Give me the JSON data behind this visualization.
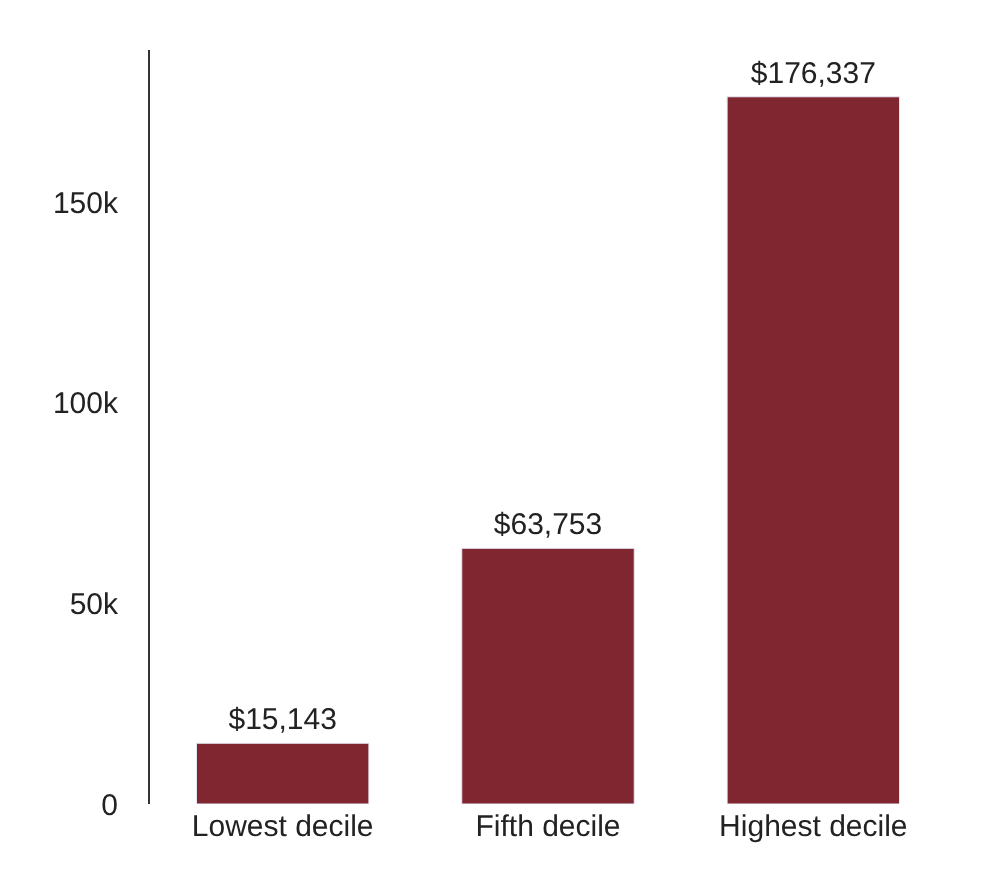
{
  "chart_data": {
    "type": "bar",
    "categories": [
      "Lowest decile",
      "Fifth decile",
      "Highest decile"
    ],
    "values": [
      15143,
      63753,
      176337
    ],
    "value_labels": [
      "$15,143",
      "$63,753",
      "$176,337"
    ],
    "color": "#7f2631",
    "ylim": [
      0,
      188000
    ],
    "yticks": [
      0,
      {
        "value": 50000,
        "label": "50k"
      },
      {
        "value": 100000,
        "label": "100k"
      },
      {
        "value": 150000,
        "label": "150k"
      }
    ]
  }
}
